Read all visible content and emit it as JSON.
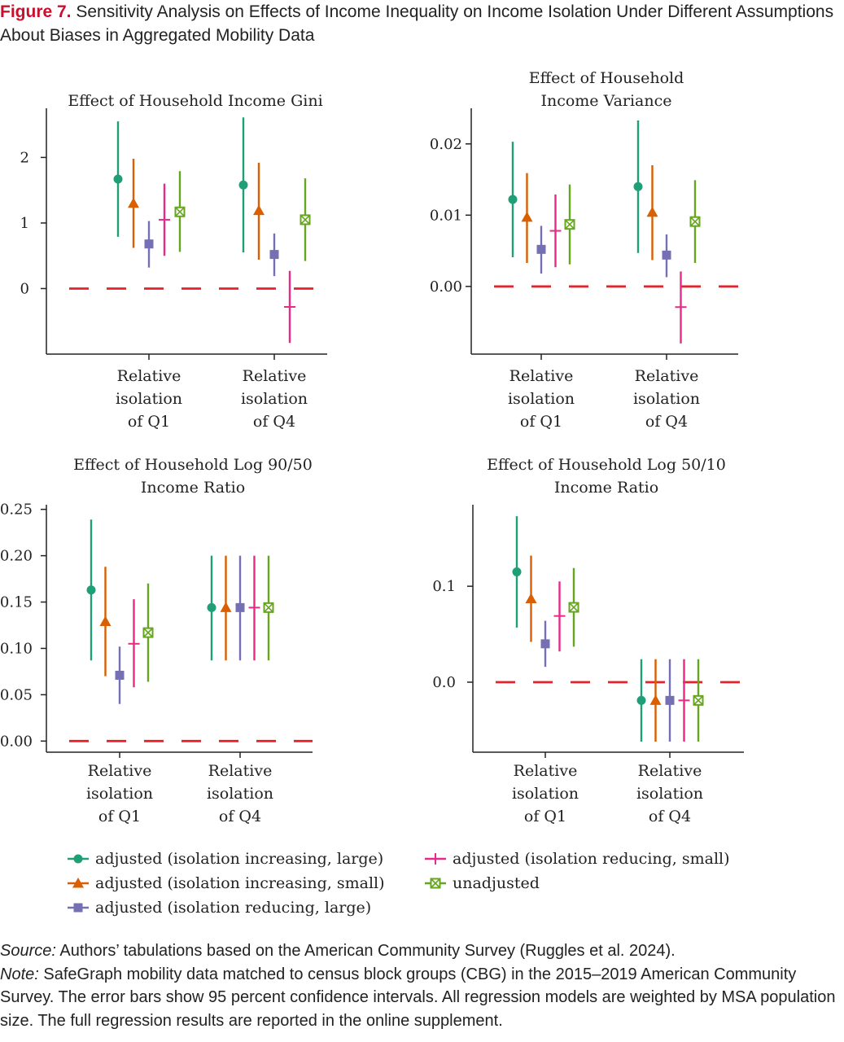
{
  "figure": {
    "label": "Figure 7.",
    "title": "Sensitivity Analysis on Effects of Income Inequality on Income Isolation Under Different Assumptions About Biases in Aggregated Mobility Data"
  },
  "legend": [
    {
      "name": "adjusted (isolation increasing, large)",
      "color": "#1f9e77",
      "marker": "circle"
    },
    {
      "name": "adjusted (isolation increasing, small)",
      "color": "#d95f02",
      "marker": "triangle"
    },
    {
      "name": "adjusted (isolation reducing, large)",
      "color": "#7570b3",
      "marker": "square"
    },
    {
      "name": "adjusted (isolation reducing, small)",
      "color": "#e7298a",
      "marker": "plus"
    },
    {
      "name": "unadjusted",
      "color": "#66a61e",
      "marker": "boxx"
    }
  ],
  "colors": {
    "zero_line": "#e8202a",
    "axis": "#222222"
  },
  "chart_data": [
    {
      "type": "scatter",
      "title": [
        "Effect of Household Income Gini"
      ],
      "categories": [
        "Relative isolation of Q1",
        "Relative isolation of Q4"
      ],
      "ylim": [
        -1.0,
        2.75
      ],
      "yticks": [
        0,
        1,
        2
      ],
      "ytick_labels": [
        "0",
        "1",
        "2"
      ],
      "reference_line": 0,
      "series": [
        {
          "name": "adjusted (isolation increasing, large)",
          "values": [
            1.67,
            1.58
          ],
          "lower": [
            0.79,
            0.55
          ],
          "upper": [
            2.55,
            2.61
          ]
        },
        {
          "name": "adjusted (isolation increasing, small)",
          "values": [
            1.3,
            1.19
          ],
          "lower": [
            0.62,
            0.44
          ],
          "upper": [
            1.98,
            1.92
          ]
        },
        {
          "name": "adjusted (isolation reducing, large)",
          "values": [
            0.68,
            0.52
          ],
          "lower": [
            0.32,
            0.19
          ],
          "upper": [
            1.03,
            0.84
          ]
        },
        {
          "name": "adjusted (isolation reducing, small)",
          "values": [
            1.05,
            -0.28
          ],
          "lower": [
            0.5,
            -0.83
          ],
          "upper": [
            1.6,
            0.27
          ]
        },
        {
          "name": "unadjusted",
          "values": [
            1.17,
            1.05
          ],
          "lower": [
            0.56,
            0.42
          ],
          "upper": [
            1.79,
            1.68
          ]
        }
      ]
    },
    {
      "type": "scatter",
      "title": [
        "Effect of Household",
        "Income Variance"
      ],
      "categories": [
        "Relative isolation of Q1",
        "Relative isolation of Q4"
      ],
      "ylim": [
        -0.0095,
        0.025
      ],
      "yticks": [
        0.0,
        0.01,
        0.02
      ],
      "ytick_labels": [
        "0.00",
        "0.01",
        "0.02"
      ],
      "reference_line": 0,
      "series": [
        {
          "name": "adjusted (isolation increasing, large)",
          "values": [
            0.0122,
            0.014
          ],
          "lower": [
            0.0041,
            0.0047
          ],
          "upper": [
            0.0203,
            0.0233
          ]
        },
        {
          "name": "adjusted (isolation increasing, small)",
          "values": [
            0.0097,
            0.0104
          ],
          "lower": [
            0.0033,
            0.0037
          ],
          "upper": [
            0.0159,
            0.017
          ]
        },
        {
          "name": "adjusted (isolation reducing, large)",
          "values": [
            0.0052,
            0.0044
          ],
          "lower": [
            0.0018,
            0.0013
          ],
          "upper": [
            0.0085,
            0.0073
          ]
        },
        {
          "name": "adjusted (isolation reducing, small)",
          "values": [
            0.0078,
            -0.0029
          ],
          "lower": [
            0.0027,
            -0.008
          ],
          "upper": [
            0.0129,
            0.0021
          ]
        },
        {
          "name": "unadjusted",
          "values": [
            0.0087,
            0.0091
          ],
          "lower": [
            0.0031,
            0.0033
          ],
          "upper": [
            0.0143,
            0.0149
          ]
        }
      ]
    },
    {
      "type": "scatter",
      "title": [
        "Effect of Household Log 90/50",
        "Income Ratio"
      ],
      "categories": [
        "Relative isolation of Q1",
        "Relative isolation of Q4"
      ],
      "ylim": [
        -0.012,
        0.255
      ],
      "yticks": [
        0.0,
        0.05,
        0.1,
        0.15,
        0.2,
        0.25
      ],
      "ytick_labels": [
        "0.00",
        "0.05",
        "0.10",
        "0.15",
        "0.20",
        "0.25"
      ],
      "reference_line": 0,
      "series": [
        {
          "name": "adjusted (isolation increasing, large)",
          "values": [
            0.163,
            0.144
          ],
          "lower": [
            0.087,
            0.087
          ],
          "upper": [
            0.239,
            0.2
          ]
        },
        {
          "name": "adjusted (isolation increasing, small)",
          "values": [
            0.129,
            0.144
          ],
          "lower": [
            0.07,
            0.087
          ],
          "upper": [
            0.188,
            0.2
          ]
        },
        {
          "name": "adjusted (isolation reducing, large)",
          "values": [
            0.071,
            0.144
          ],
          "lower": [
            0.04,
            0.087
          ],
          "upper": [
            0.102,
            0.2
          ]
        },
        {
          "name": "adjusted (isolation reducing, small)",
          "values": [
            0.105,
            0.144
          ],
          "lower": [
            0.058,
            0.087
          ],
          "upper": [
            0.153,
            0.2
          ]
        },
        {
          "name": "unadjusted",
          "values": [
            0.117,
            0.144
          ],
          "lower": [
            0.064,
            0.087
          ],
          "upper": [
            0.17,
            0.2
          ]
        }
      ]
    },
    {
      "type": "scatter",
      "title": [
        "Effect of Household Log 50/10",
        "Income Ratio"
      ],
      "categories": [
        "Relative isolation of Q1",
        "Relative isolation of Q4"
      ],
      "ylim": [
        -0.073,
        0.185
      ],
      "yticks": [
        0.0,
        0.1
      ],
      "ytick_labels": [
        "0.0",
        "0.1"
      ],
      "reference_line": 0,
      "series": [
        {
          "name": "adjusted (isolation increasing, large)",
          "values": [
            0.115,
            -0.019
          ],
          "lower": [
            0.057,
            -0.062
          ],
          "upper": [
            0.173,
            0.024
          ]
        },
        {
          "name": "adjusted (isolation increasing, small)",
          "values": [
            0.087,
            -0.019
          ],
          "lower": [
            0.042,
            -0.062
          ],
          "upper": [
            0.132,
            0.024
          ]
        },
        {
          "name": "adjusted (isolation reducing, large)",
          "values": [
            0.04,
            -0.019
          ],
          "lower": [
            0.016,
            -0.062
          ],
          "upper": [
            0.064,
            0.024
          ]
        },
        {
          "name": "adjusted (isolation reducing, small)",
          "values": [
            0.069,
            -0.019
          ],
          "lower": [
            0.032,
            -0.062
          ],
          "upper": [
            0.105,
            0.024
          ]
        },
        {
          "name": "unadjusted",
          "values": [
            0.078,
            -0.019
          ],
          "lower": [
            0.037,
            -0.062
          ],
          "upper": [
            0.119,
            0.024
          ]
        }
      ]
    }
  ],
  "source": {
    "label": "Source:",
    "text": "Authors’ tabulations based on the American Community Survey (Ruggles et al. 2024)."
  },
  "note": {
    "label": "Note:",
    "text": "SafeGraph mobility data matched to census block groups (CBG) in the 2015–2019 American Community Survey. The error bars show 95 percent confidence intervals. All regression models are weighted by MSA population size. The full regression results are reported in the online supplement."
  }
}
